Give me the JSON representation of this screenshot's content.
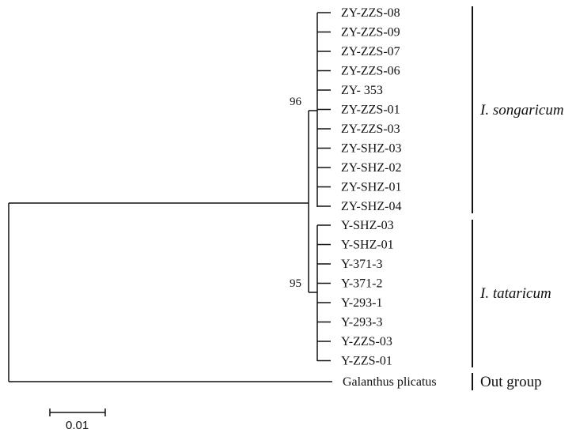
{
  "tree": {
    "clade_songaricum": {
      "taxa": [
        "ZY-ZZS-08",
        "ZY-ZZS-09",
        "ZY-ZZS-07",
        "ZY-ZZS-06",
        "ZY- 353",
        "ZY-ZZS-01",
        "ZY-ZZS-03",
        "ZY-SHZ-03",
        "ZY-SHZ-02",
        "ZY-SHZ-01",
        "ZY-SHZ-04"
      ],
      "bootstrap": "96",
      "group_label": "I. songaricum"
    },
    "clade_tataricum": {
      "taxa": [
        "Y-SHZ-03",
        "Y-SHZ-01",
        "Y-371-3",
        "Y-371-2",
        "Y-293-1",
        "Y-293-3",
        "Y-ZZS-03",
        "Y-ZZS-01"
      ],
      "bootstrap": "95",
      "group_label": "I. tataricum"
    },
    "outgroup": {
      "taxon": "Galanthus plicatus",
      "group_label": "Out group"
    },
    "scale_bar": {
      "label": "0.01"
    }
  },
  "colors": {
    "line": "#111111",
    "background": "#ffffff"
  }
}
